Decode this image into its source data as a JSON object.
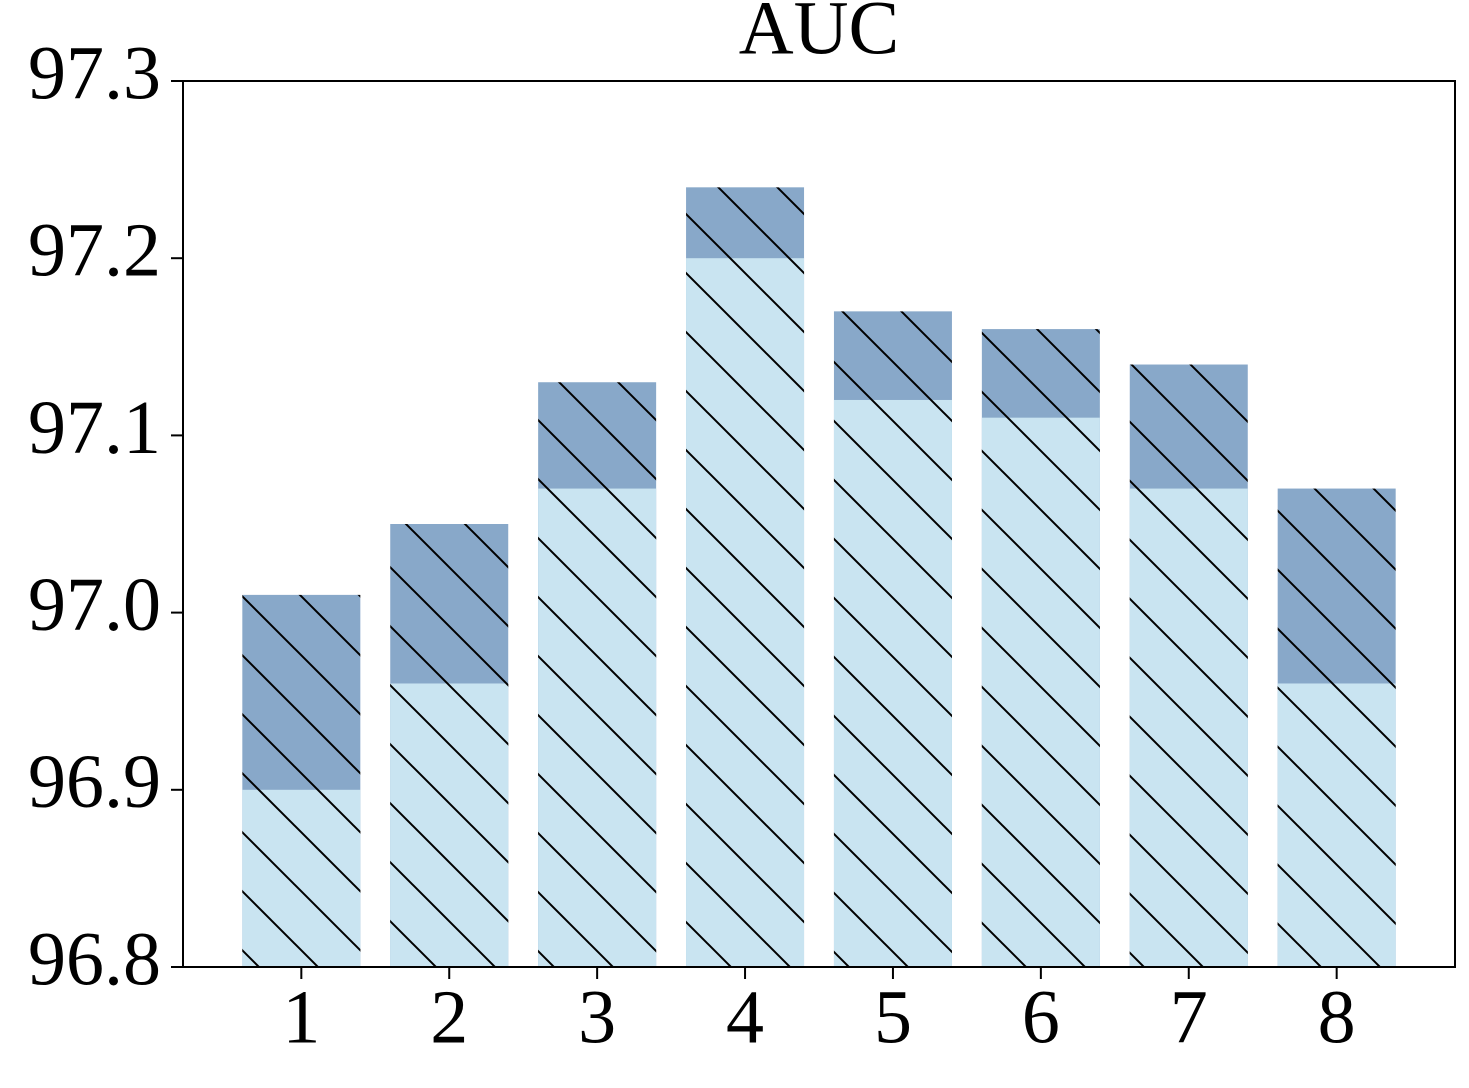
{
  "chart_data": {
    "type": "bar",
    "title": "AUC",
    "categories": [
      "1",
      "2",
      "3",
      "4",
      "5",
      "6",
      "7",
      "8"
    ],
    "series": [
      {
        "color": "#88a8c9",
        "values": [
          97.01,
          97.05,
          97.13,
          97.24,
          97.17,
          97.16,
          97.14,
          97.07
        ]
      },
      {
        "color": "#c9e4f1",
        "values": [
          96.9,
          96.96,
          97.07,
          97.2,
          97.12,
          97.11,
          97.07,
          96.96
        ]
      }
    ],
    "hatch": "\\",
    "ylim": [
      96.8,
      97.3
    ],
    "yticks": [
      96.8,
      96.9,
      {
        "value": 97,
        "label": "97.0"
      },
      97.1,
      97.2,
      97.3
    ]
  }
}
